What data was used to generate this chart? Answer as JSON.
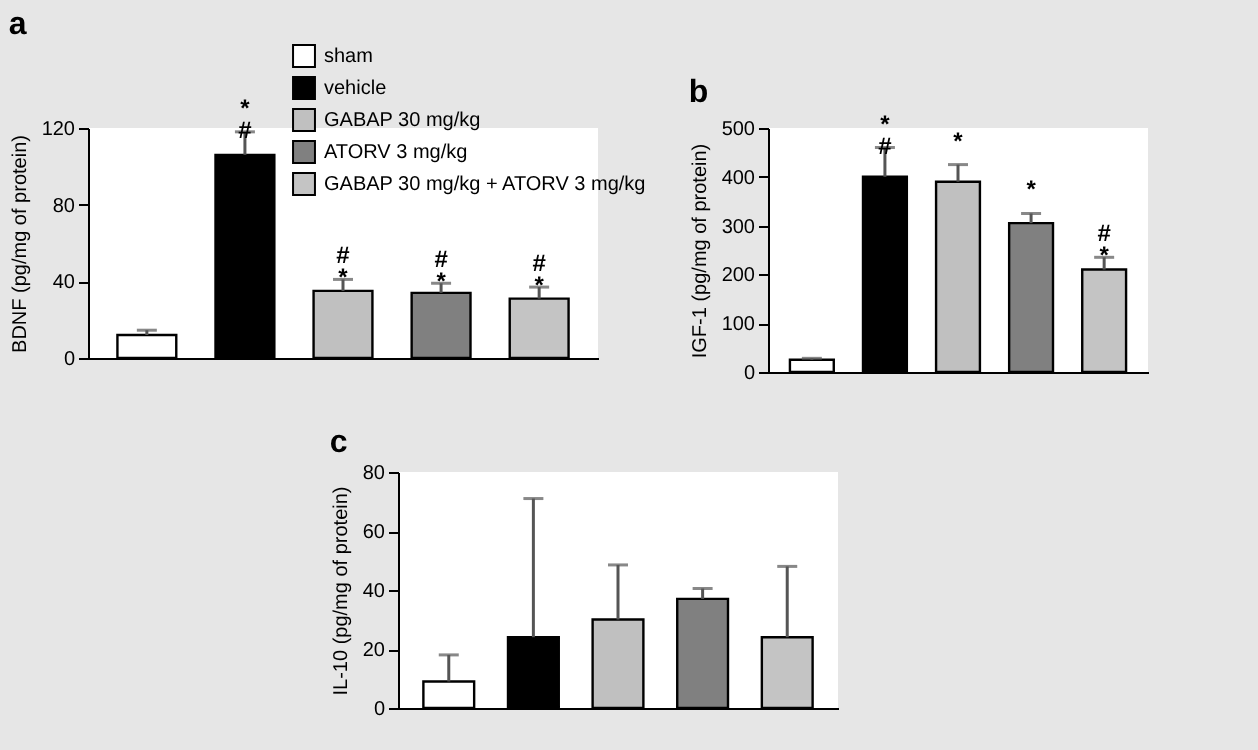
{
  "chart_data": [
    {
      "type": "bar",
      "title": "a",
      "ylabel": "BDNF (pg/mg of protein)",
      "categories": [
        null
      ],
      "ylim": [
        0,
        120
      ],
      "yticks": [
        0,
        40,
        80,
        120
      ],
      "legend": "top right",
      "tick_labels": "y",
      "series": [
        {
          "name": "sham",
          "color": "#ffffff",
          "values": [
            12
          ],
          "errors": [
            [
              12,
              14.5
            ]
          ]
        },
        {
          "name": "vehicle",
          "color": "#000000",
          "values": [
            106
          ],
          "errors": [
            [
              106,
              118
            ]
          ],
          "value_labels": [
            "*\n#"
          ]
        },
        {
          "name": "GABAP 30 mg/kg",
          "color": "#c0c0c0",
          "values": [
            35
          ],
          "errors": [
            [
              35,
              41
            ]
          ],
          "value_labels": [
            "#\n*"
          ]
        },
        {
          "name": "ATORV 3 mg/kg",
          "color": "#808080",
          "values": [
            34
          ],
          "errors": [
            [
              34,
              39
            ]
          ],
          "value_labels": [
            "#\n*"
          ]
        },
        {
          "name": "GABAP 30 mg/kg + ATORV 3 mg/kg",
          "color": "#c4c4c4",
          "values": [
            31
          ],
          "errors": [
            [
              31,
              37
            ]
          ],
          "value_labels": [
            "#\n*"
          ]
        }
      ]
    },
    {
      "type": "bar",
      "title": "b",
      "ylabel": "IGF-1 (pg/mg of protein)",
      "categories": [
        null
      ],
      "ylim": [
        0,
        500
      ],
      "yticks": [
        0,
        100,
        200,
        300,
        400,
        500
      ],
      "tick_labels": "y",
      "series": [
        {
          "color": "#ffffff",
          "values": [
            25
          ],
          "errors": [
            [
              25,
              28
            ]
          ]
        },
        {
          "color": "#000000",
          "values": [
            400
          ],
          "errors": [
            [
              400,
              460
            ]
          ],
          "value_labels": [
            "*\n#"
          ]
        },
        {
          "color": "#c0c0c0",
          "values": [
            390
          ],
          "errors": [
            [
              390,
              425
            ]
          ],
          "value_labels": [
            "*"
          ]
        },
        {
          "color": "#808080",
          "values": [
            305
          ],
          "errors": [
            [
              305,
              325
            ]
          ],
          "value_labels": [
            "*"
          ]
        },
        {
          "color": "#c4c4c4",
          "values": [
            210
          ],
          "errors": [
            [
              210,
              235
            ]
          ],
          "value_labels": [
            "#\n*"
          ]
        }
      ]
    },
    {
      "type": "bar",
      "title": "c",
      "ylabel": "IL-10 (pg/mg of protein)",
      "categories": [
        null
      ],
      "ylim": [
        0,
        80
      ],
      "yticks": [
        0,
        20,
        40,
        60,
        80
      ],
      "tick_labels": "y",
      "series": [
        {
          "color": "#ffffff",
          "values": [
            9
          ],
          "errors": [
            [
              9,
              18
            ]
          ]
        },
        {
          "color": "#000000",
          "values": [
            24
          ],
          "errors": [
            [
              24,
              71
            ]
          ]
        },
        {
          "color": "#c0c0c0",
          "values": [
            30
          ],
          "errors": [
            [
              30,
              48.5
            ]
          ]
        },
        {
          "color": "#808080",
          "values": [
            37
          ],
          "errors": [
            [
              37,
              40.5
            ]
          ]
        },
        {
          "color": "#c4c4c4",
          "values": [
            24
          ],
          "errors": [
            [
              24,
              48
            ]
          ]
        }
      ]
    }
  ]
}
